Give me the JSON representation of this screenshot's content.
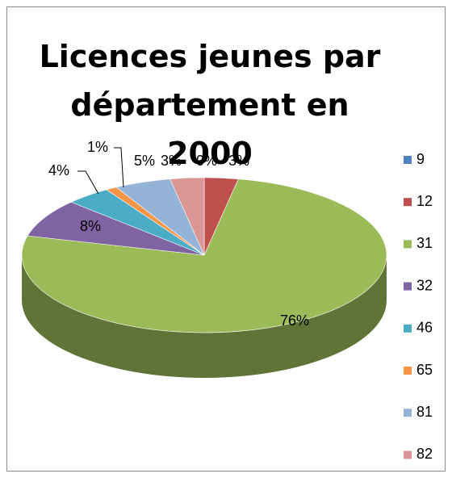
{
  "chart_data": {
    "type": "pie",
    "title": "Licences jeunes par département en 2000",
    "categories": [
      "9",
      "12",
      "31",
      "32",
      "46",
      "65",
      "81",
      "82"
    ],
    "values": [
      0,
      3,
      76,
      8,
      4,
      1,
      5,
      3
    ],
    "value_labels": [
      "0%",
      "3%",
      "76%",
      "8%",
      "4%",
      "1%",
      "5%",
      "3%"
    ],
    "colors": [
      "#4f81bd",
      "#c0504d",
      "#9bbb59",
      "#8064a2",
      "#4bacc6",
      "#f79646",
      "#95b3d7",
      "#d99694"
    ],
    "legend": "right"
  }
}
